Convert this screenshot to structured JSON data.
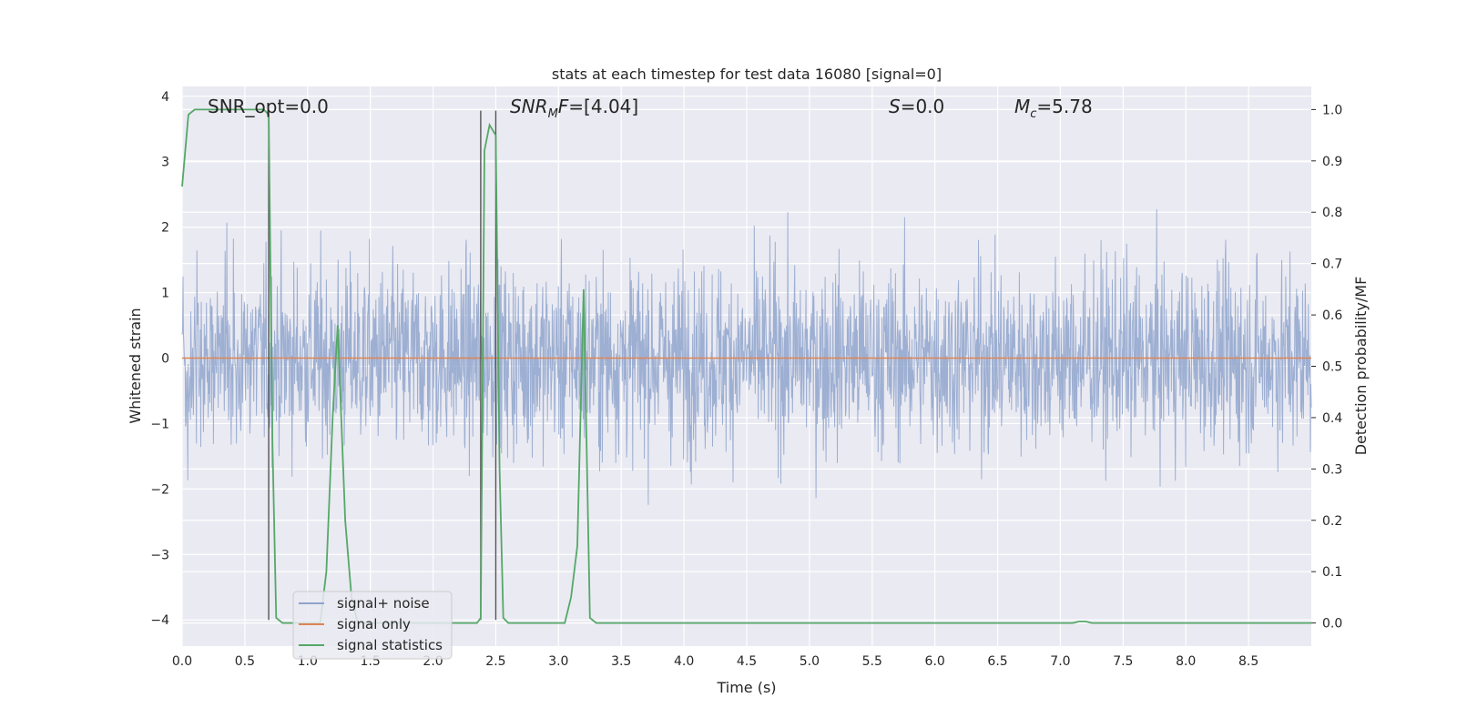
{
  "chart_data": {
    "type": "line",
    "title": "stats at each timestep for test data 16080 [signal=0]",
    "xlabel": "Time (s)",
    "ylabel": "Whitened strain",
    "y2label": "Detection probability/MF",
    "xlim": [
      0.0,
      9.0
    ],
    "ylim": [
      -4.4,
      4.15
    ],
    "y2lim": [
      -0.045,
      1.045
    ],
    "x_ticks": [
      "0.0",
      "0.5",
      "1.0",
      "1.5",
      "2.0",
      "2.5",
      "3.0",
      "3.5",
      "4.0",
      "4.5",
      "5.0",
      "5.5",
      "6.0",
      "6.5",
      "7.0",
      "7.5",
      "8.0",
      "8.5"
    ],
    "y_ticks": [
      "−4",
      "−3",
      "−2",
      "−1",
      "0",
      "1",
      "2",
      "3",
      "4"
    ],
    "y2_ticks": [
      "0.0",
      "0.1",
      "0.2",
      "0.3",
      "0.4",
      "0.5",
      "0.6",
      "0.7",
      "0.8",
      "0.9",
      "1.0"
    ],
    "grid": true,
    "legend_position": "lower-left",
    "annotations": [
      {
        "id": "snr_opt",
        "text": "SNR_opt=0.0",
        "x": 0.19,
        "y": 3.88
      },
      {
        "id": "snr_mf",
        "text": "SNR_MF=[4.04]",
        "x": 2.6,
        "y": 3.88
      },
      {
        "id": "s",
        "text": "S=0.0",
        "x": 5.6,
        "y": 3.88
      },
      {
        "id": "mc",
        "text": "M_c=5.78",
        "x": 6.6,
        "y": 3.88
      }
    ],
    "vertical_markers_x": [
      0.69,
      2.38,
      2.5
    ],
    "vertical_markers_yrange": [
      -4.0,
      3.78
    ],
    "series": [
      {
        "name": "signal+ noise",
        "color": "#8fa4cc",
        "kind": "noise",
        "description_values": "whitened noise between about -2 and +2 with spikes reaching about +3.8 and -4.0"
      },
      {
        "name": "signal only",
        "color": "#dd8452",
        "x": [
          0.0,
          9.0
        ],
        "y": [
          0.0,
          0.0
        ]
      },
      {
        "name": "signal statistics",
        "color": "#55a868",
        "axis": "right",
        "x": [
          0.0,
          0.05,
          0.1,
          0.15,
          0.2,
          0.3,
          0.4,
          0.5,
          0.6,
          0.65,
          0.69,
          0.72,
          0.75,
          0.8,
          0.9,
          1.0,
          1.05,
          1.1,
          1.15,
          1.2,
          1.24,
          1.3,
          1.35,
          1.4,
          1.5,
          1.6,
          1.7,
          1.8,
          1.9,
          2.0,
          2.1,
          2.2,
          2.3,
          2.35,
          2.38,
          2.41,
          2.45,
          2.5,
          2.53,
          2.56,
          2.6,
          2.7,
          2.8,
          2.9,
          3.0,
          3.05,
          3.1,
          3.15,
          3.2,
          3.25,
          3.3,
          3.5,
          4.0,
          5.0,
          6.0,
          7.0,
          7.1,
          7.15,
          7.2,
          7.25,
          7.3,
          8.0,
          9.0
        ],
        "y": [
          0.85,
          0.99,
          1.0,
          1.0,
          1.0,
          1.0,
          1.0,
          1.0,
          1.0,
          1.0,
          0.99,
          0.35,
          0.01,
          0.0,
          0.0,
          0.0,
          0.0,
          0.0,
          0.1,
          0.4,
          0.58,
          0.2,
          0.05,
          0.0,
          0.0,
          0.0,
          0.0,
          0.0,
          0.0,
          0.0,
          0.0,
          0.0,
          0.0,
          0.0,
          0.01,
          0.92,
          0.97,
          0.95,
          0.3,
          0.01,
          0.0,
          0.0,
          0.0,
          0.0,
          0.0,
          0.0,
          0.05,
          0.15,
          0.65,
          0.01,
          0.0,
          0.0,
          0.0,
          0.0,
          0.0,
          0.0,
          0.0,
          0.003,
          0.003,
          0.0,
          0.0,
          0.0,
          0.0
        ]
      }
    ]
  }
}
